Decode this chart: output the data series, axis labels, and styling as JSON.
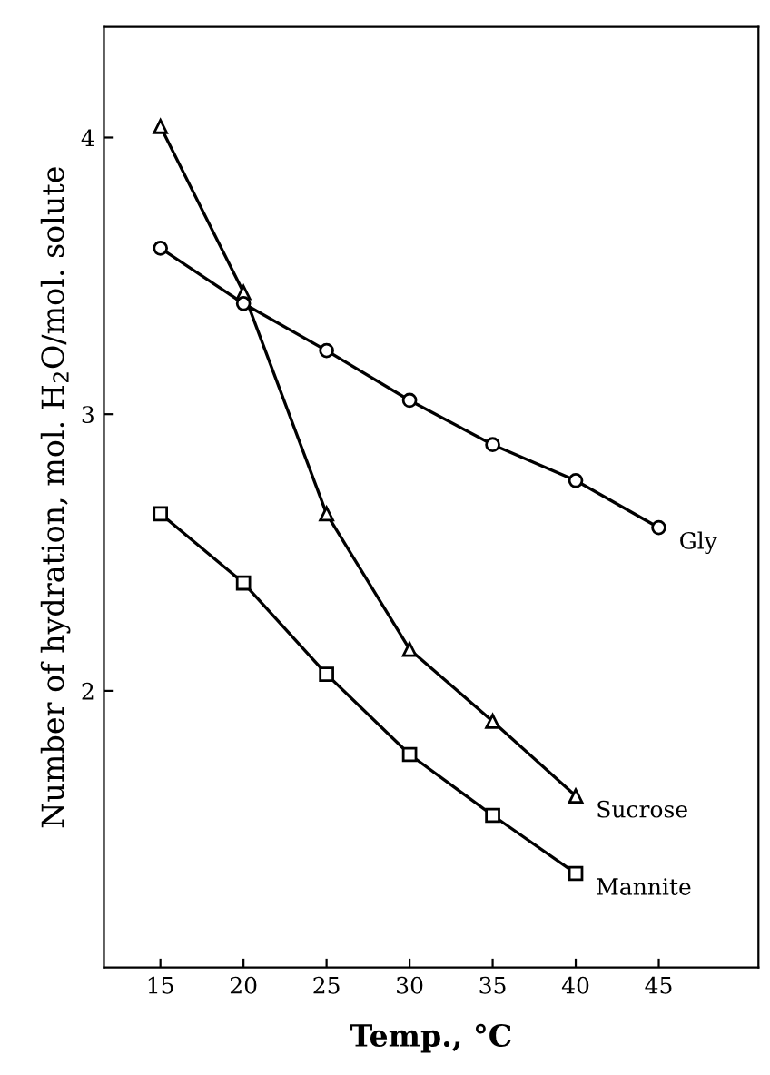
{
  "chart_data": {
    "type": "line",
    "xlabel": "Temp., °C",
    "ylabel": "Number of hydration, mol. H$_{2}$O/mol. solute",
    "x": [
      15,
      20,
      25,
      30,
      35,
      40,
      45
    ],
    "series": [
      {
        "name": "Gly",
        "color": "#000000",
        "marker": "circle",
        "values": [
          3.6,
          3.4,
          3.23,
          3.05,
          2.89,
          2.76,
          2.59
        ]
      },
      {
        "name": "Sucrose",
        "color": "#000000",
        "marker": "triangle",
        "values": [
          4.04,
          3.44,
          2.64,
          2.15,
          1.89,
          1.62,
          null
        ]
      },
      {
        "name": "Mannite",
        "color": "#000000",
        "marker": "square",
        "values": [
          2.64,
          2.39,
          2.06,
          1.77,
          1.55,
          1.34,
          null
        ]
      }
    ],
    "xlim": [
      11.6,
      51
    ],
    "ylim": [
      1.0,
      4.4
    ],
    "xticks": [
      15,
      20,
      25,
      30,
      35,
      40,
      45
    ],
    "yticks": [
      2,
      3,
      4
    ],
    "grid": false,
    "legend": false,
    "line_style": "solid"
  }
}
